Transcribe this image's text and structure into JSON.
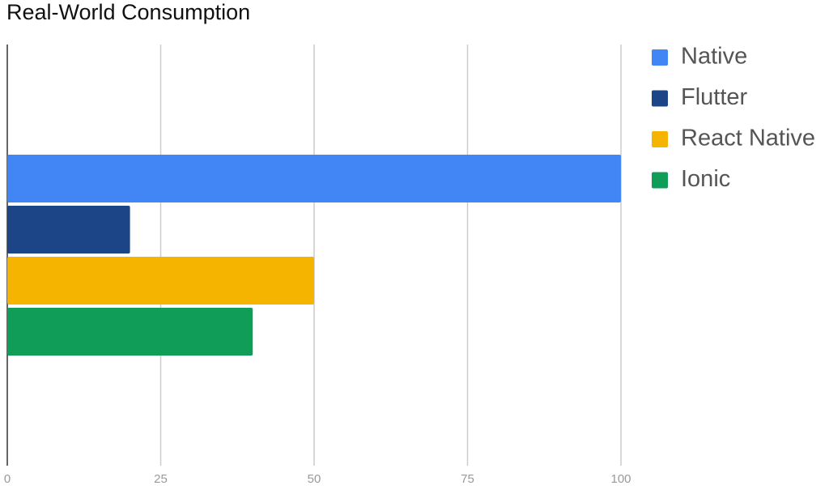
{
  "chart_data": {
    "type": "bar",
    "orientation": "horizontal",
    "title": "Real-World Consumption",
    "categories": [
      null
    ],
    "series": [
      {
        "name": "Native",
        "color": "#4285f4",
        "values": [
          100
        ]
      },
      {
        "name": "Flutter",
        "color": "#1c4587",
        "values": [
          20
        ]
      },
      {
        "name": "React Native",
        "color": "#f4b400",
        "values": [
          50
        ]
      },
      {
        "name": "Ionic",
        "color": "#0f9d58",
        "values": [
          40
        ]
      }
    ],
    "xlim": [
      0,
      100
    ],
    "xticks": [
      0,
      25,
      50,
      75,
      100
    ],
    "grid": true,
    "legend": "right"
  }
}
